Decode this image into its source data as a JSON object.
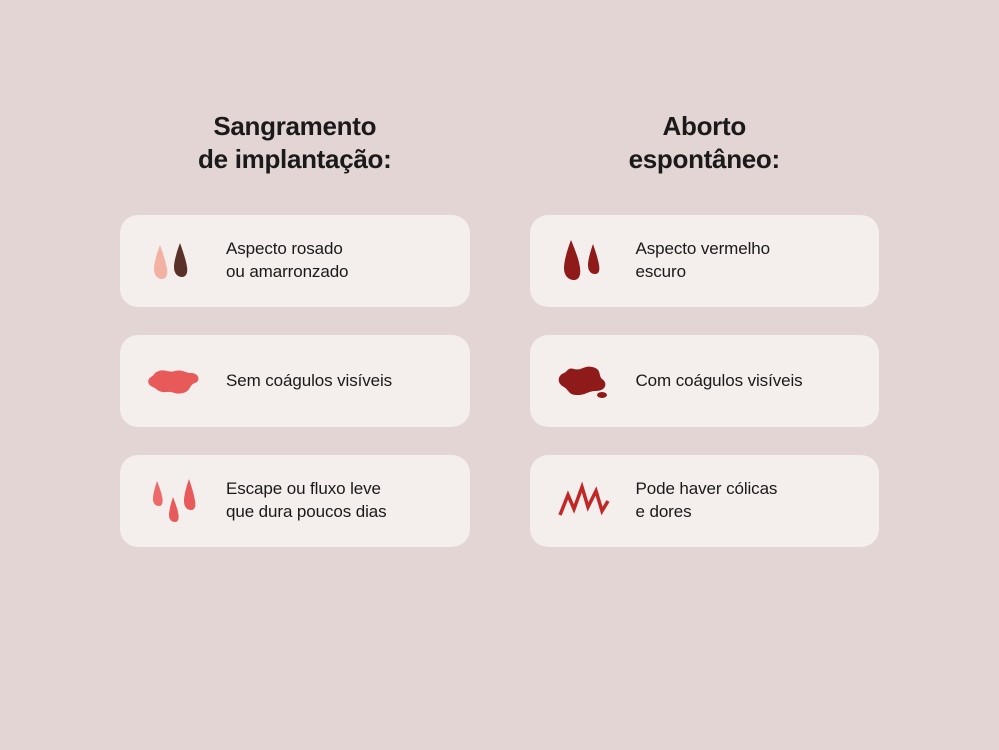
{
  "background_color": "#e3d5d4",
  "card_background_color": "#f4eeec",
  "card_border_radius": 18,
  "title_fontsize": 26,
  "card_text_fontsize": 17,
  "text_color": "#1a1a1a",
  "columns": [
    {
      "title": "Sangramento\nde implantação:",
      "cards": [
        {
          "icon": "two-drops-pink-brown",
          "text": "Aspecto rosado\nou amarronzado",
          "colors": [
            "#f3b1a4",
            "#5a3128"
          ]
        },
        {
          "icon": "splat-light",
          "text": "Sem coágulos visíveis",
          "colors": [
            "#e85a5a"
          ]
        },
        {
          "icon": "three-drops-light",
          "text": "Escape ou fluxo leve\nque dura poucos dias",
          "colors": [
            "#ed6a6a",
            "#e85a5a",
            "#e85a5a"
          ]
        }
      ]
    },
    {
      "title": "Aborto\nespontâneo:",
      "cards": [
        {
          "icon": "two-drops-dark",
          "text": "Aspecto vermelho\nescuro",
          "colors": [
            "#8f1a1a",
            "#8f1a1a"
          ]
        },
        {
          "icon": "splat-dark",
          "text": "Com coágulos visíveis",
          "colors": [
            "#8f1a1a"
          ]
        },
        {
          "icon": "pain-spikes",
          "text": "Pode haver cólicas\ne dores",
          "colors": [
            "#c02828"
          ]
        }
      ]
    }
  ]
}
